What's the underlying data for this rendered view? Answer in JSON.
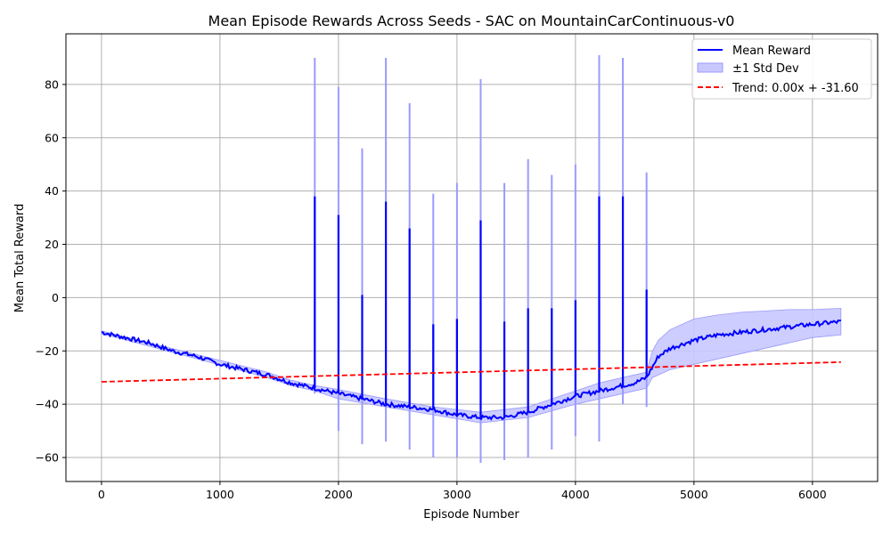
{
  "chart_data": {
    "type": "line",
    "title": "Mean Episode Rewards Across Seeds - SAC on MountainCarContinuous-v0",
    "xlabel": "Episode Number",
    "ylabel": "Mean Total Reward",
    "xlim": [
      -300,
      6550
    ],
    "ylim": [
      -69,
      99
    ],
    "xticks": [
      0,
      1000,
      2000,
      3000,
      4000,
      5000,
      6000
    ],
    "yticks": [
      -60,
      -40,
      -20,
      0,
      20,
      40,
      60,
      80
    ],
    "grid": true,
    "legend_position": "top-right",
    "legend": [
      "Mean Reward",
      "±1 Std Dev",
      "Trend: 0.00x + -31.60"
    ],
    "colors": {
      "mean": "#0000ff",
      "band": "#c8c8ff",
      "band_edge": "#9a9aff",
      "trend": "#ff0000",
      "grid": "#b0b0b0"
    },
    "mean_series": {
      "name": "Mean Reward",
      "x": [
        0,
        200,
        400,
        600,
        800,
        1000,
        1200,
        1400,
        1600,
        1800,
        2000,
        2200,
        2400,
        2600,
        2800,
        3000,
        3200,
        3400,
        3600,
        3800,
        4000,
        4200,
        4400,
        4500,
        4600,
        4700,
        4800,
        5000,
        5200,
        5400,
        5600,
        5800,
        6000,
        6240
      ],
      "y": [
        -13,
        -15,
        -17,
        -20,
        -22,
        -25,
        -27,
        -29,
        -32,
        -34,
        -36,
        -38,
        -40,
        -41,
        -42,
        -44,
        -45,
        -45,
        -43,
        -40,
        -37,
        -35,
        -33,
        -32,
        -30,
        -22,
        -19,
        -16,
        -14,
        -13,
        -12,
        -11,
        -10,
        -9
      ]
    },
    "std_band": {
      "name": "±1 Std Dev",
      "x": [
        0,
        1400,
        1600,
        1800,
        2000,
        2400,
        2800,
        3200,
        3600,
        4000,
        4200,
        4400,
        4600,
        4650,
        4700,
        4800,
        5000,
        5200,
        5400,
        5600,
        5800,
        6000,
        6240
      ],
      "upper": [
        -12.5,
        -28,
        -31,
        -33,
        -34.5,
        -38,
        -41,
        -43,
        -41,
        -35,
        -32,
        -30,
        -28,
        -20,
        -16,
        -12,
        -8,
        -6.5,
        -5.5,
        -5,
        -4.5,
        -4.5,
        -4
      ],
      "lower": [
        -13.5,
        -30,
        -33,
        -35,
        -38,
        -41,
        -44,
        -47,
        -45,
        -40,
        -38,
        -36,
        -34,
        -30,
        -29,
        -27,
        -25,
        -23,
        -21,
        -19,
        -17,
        -15,
        -14
      ]
    },
    "spikes": [
      {
        "x": 1800,
        "mean": 38,
        "high": 90,
        "low": -36
      },
      {
        "x": 2000,
        "mean": 31,
        "high": 79,
        "low": -50
      },
      {
        "x": 2200,
        "mean": 1,
        "high": 56,
        "low": -55
      },
      {
        "x": 2400,
        "mean": 36,
        "high": 90,
        "low": -54
      },
      {
        "x": 2600,
        "mean": 26,
        "high": 73,
        "low": -57
      },
      {
        "x": 2800,
        "mean": -10,
        "high": 39,
        "low": -60
      },
      {
        "x": 3000,
        "mean": -8,
        "high": 43,
        "low": -60
      },
      {
        "x": 3200,
        "mean": 29,
        "high": 82,
        "low": -62
      },
      {
        "x": 3400,
        "mean": -9,
        "high": 43,
        "low": -61
      },
      {
        "x": 3600,
        "mean": -4,
        "high": 52,
        "low": -60
      },
      {
        "x": 3800,
        "mean": -4,
        "high": 46,
        "low": -57
      },
      {
        "x": 4000,
        "mean": -1,
        "high": 50,
        "low": -52
      },
      {
        "x": 4200,
        "mean": 38,
        "high": 91,
        "low": -54
      },
      {
        "x": 4400,
        "mean": 38,
        "high": 90,
        "low": -40
      },
      {
        "x": 4600,
        "mean": 3,
        "high": 47,
        "low": -41
      }
    ],
    "trend": {
      "name": "Trend: 0.00x + -31.60",
      "x": [
        0,
        6240
      ],
      "y": [
        -31.6,
        -24.2
      ]
    }
  }
}
